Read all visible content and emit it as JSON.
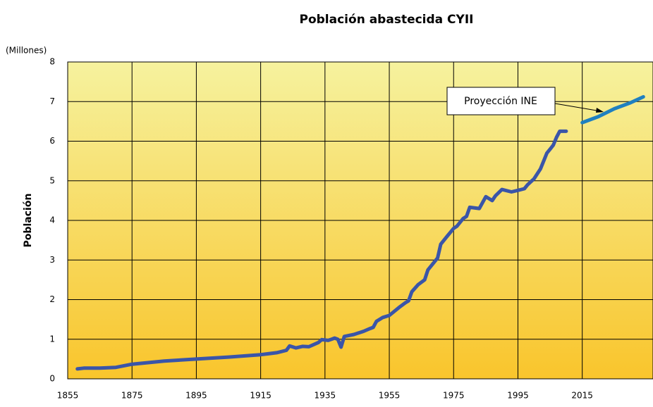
{
  "chart_data": {
    "type": "line",
    "title": "Población abastecida CYII",
    "y_unit": "(Millones)",
    "y_label": "Población",
    "annotation": "Proyección INE",
    "xlim": [
      1855,
      2037
    ],
    "xticks": [
      1855,
      1875,
      1895,
      1915,
      1935,
      1955,
      1975,
      1995,
      2015
    ],
    "ylim": [
      0,
      8
    ],
    "yticks": [
      0,
      1,
      2,
      3,
      4,
      5,
      6,
      7,
      8
    ],
    "grid": true,
    "series": [
      {
        "color": "#3a55a8",
        "x": [
          1858,
          1860,
          1865,
          1870,
          1875,
          1885,
          1895,
          1905,
          1915,
          1920,
          1923,
          1924,
          1926,
          1928,
          1930,
          1933,
          1934,
          1936,
          1937,
          1938,
          1939,
          1940,
          1941,
          1944,
          1947,
          1949,
          1950,
          1951,
          1953,
          1955,
          1958,
          1960,
          1961,
          1962,
          1964,
          1966,
          1967,
          1969,
          1970,
          1971,
          1973,
          1975,
          1976,
          1978,
          1979,
          1980,
          1983,
          1984,
          1985,
          1987,
          1988,
          1990,
          1993,
          1995,
          1997,
          1998,
          2000,
          2002,
          2004,
          2005,
          2006,
          2007,
          2008,
          2009,
          2010
        ],
        "values": [
          0.25,
          0.27,
          0.27,
          0.29,
          0.37,
          0.45,
          0.5,
          0.55,
          0.61,
          0.66,
          0.72,
          0.83,
          0.78,
          0.82,
          0.81,
          0.92,
          0.99,
          0.97,
          1.0,
          1.03,
          1.0,
          0.8,
          1.07,
          1.12,
          1.2,
          1.27,
          1.3,
          1.45,
          1.55,
          1.6,
          1.8,
          1.92,
          1.97,
          2.2,
          2.38,
          2.5,
          2.75,
          2.95,
          3.05,
          3.4,
          3.6,
          3.8,
          3.85,
          4.05,
          4.1,
          4.33,
          4.3,
          4.45,
          4.6,
          4.5,
          4.62,
          4.78,
          4.72,
          4.76,
          4.8,
          4.9,
          5.05,
          5.3,
          5.7,
          5.8,
          5.9,
          6.1,
          6.25,
          6.25,
          6.25
        ]
      },
      {
        "color": "#1f80c0",
        "x": [
          2015,
          2020,
          2025,
          2030,
          2034
        ],
        "values": [
          6.47,
          6.62,
          6.82,
          6.97,
          7.12
        ]
      }
    ]
  }
}
